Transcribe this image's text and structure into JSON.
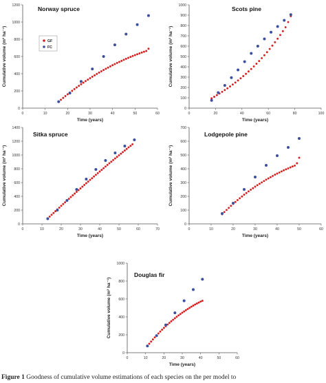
{
  "colors": {
    "GF": "#d42020",
    "FC": "#3a4fa0"
  },
  "legend": {
    "gf_label": "GF",
    "fc_label": "FC"
  },
  "caption": {
    "label": "Figure 1",
    "text": "   Goodness of cumulative volume estimations of each species on the per model to"
  },
  "chart_data": [
    {
      "type": "scatter",
      "title": "Norway spruce",
      "xlabel": "Time (years)",
      "ylabel": "Cumulative volume (m³ ha⁻¹)",
      "xlim": [
        0,
        60
      ],
      "ylim": [
        0,
        1200
      ],
      "xticks": [
        0,
        10,
        20,
        30,
        40,
        50,
        60
      ],
      "yticks": [
        0,
        200,
        400,
        600,
        800,
        1000,
        1200
      ],
      "legend_position": "top-left",
      "series": [
        {
          "name": "GF",
          "x": [
            16,
            17,
            18,
            19,
            20,
            21,
            22,
            23,
            24,
            25,
            26,
            27,
            28,
            29,
            30,
            31,
            32,
            33,
            34,
            35,
            36,
            37,
            38,
            39,
            40,
            41,
            42,
            43,
            44,
            45,
            46,
            47,
            48,
            49,
            50,
            51,
            52,
            53,
            54,
            55,
            56
          ],
          "y": [
            75,
            97,
            119,
            140,
            161,
            181,
            201,
            221,
            240,
            259,
            278,
            296,
            314,
            331,
            348,
            365,
            381,
            397,
            413,
            428,
            443,
            457,
            471,
            485,
            499,
            512,
            525,
            537,
            549,
            561,
            573,
            584,
            595,
            606,
            616,
            626,
            636,
            646,
            655,
            664,
            690
          ]
        },
        {
          "name": "FC",
          "x": [
            16,
            21,
            26,
            31,
            36,
            41,
            46,
            51,
            56
          ],
          "y": [
            75,
            175,
            310,
            455,
            600,
            735,
            860,
            970,
            1075
          ]
        }
      ]
    },
    {
      "type": "scatter",
      "title": "Scots pine",
      "xlabel": "Time (years)",
      "ylabel": "Cumulative volume (m³ ha⁻¹)",
      "xlim": [
        0,
        100
      ],
      "ylim": [
        0,
        1000
      ],
      "xticks": [
        0,
        20,
        40,
        60,
        80,
        100
      ],
      "yticks": [
        0,
        100,
        200,
        300,
        400,
        500,
        600,
        700,
        800,
        900,
        1000
      ],
      "series": [
        {
          "name": "GF",
          "x": [
            17,
            19,
            21,
            23,
            25,
            27,
            29,
            31,
            33,
            35,
            37,
            39,
            41,
            43,
            45,
            47,
            49,
            51,
            53,
            55,
            57,
            59,
            61,
            63,
            65,
            67,
            69,
            71,
            73,
            75,
            77
          ],
          "y": [
            95,
            110,
            126,
            142,
            158,
            175,
            192,
            210,
            229,
            248,
            268,
            289,
            310,
            332,
            355,
            379,
            404,
            430,
            456,
            484,
            512,
            542,
            573,
            605,
            638,
            672,
            708,
            745,
            783,
            833,
            890
          ]
        },
        {
          "name": "FC",
          "x": [
            17,
            22,
            27,
            32,
            37,
            42,
            47,
            52,
            57,
            62,
            67,
            72,
            77
          ],
          "y": [
            75,
            150,
            220,
            295,
            370,
            450,
            530,
            600,
            670,
            735,
            790,
            850,
            905
          ]
        }
      ]
    },
    {
      "type": "scatter",
      "title": "Sitka spruce",
      "xlabel": "Time (years)",
      "ylabel": "Cumulative volume (m³ ha⁻¹)",
      "xlim": [
        0,
        70
      ],
      "ylim": [
        0,
        1400
      ],
      "xticks": [
        0,
        10,
        20,
        30,
        40,
        50,
        60,
        70
      ],
      "yticks": [
        0,
        200,
        400,
        600,
        800,
        1000,
        1200,
        1400
      ],
      "series": [
        {
          "name": "GF",
          "x": [
            13,
            14,
            15,
            16,
            17,
            18,
            19,
            20,
            21,
            22,
            23,
            24,
            25,
            26,
            27,
            28,
            29,
            30,
            31,
            32,
            33,
            34,
            35,
            36,
            37,
            38,
            39,
            40,
            41,
            42,
            43,
            44,
            45,
            46,
            47,
            48,
            49,
            50,
            51,
            52,
            53,
            54,
            55,
            56,
            57,
            58
          ],
          "y": [
            80,
            106,
            132,
            158,
            184,
            210,
            236,
            262,
            288,
            313,
            339,
            364,
            390,
            415,
            440,
            465,
            490,
            515,
            540,
            565,
            590,
            614,
            639,
            663,
            688,
            712,
            736,
            760,
            784,
            808,
            832,
            856,
            880,
            903,
            927,
            950,
            973,
            996,
            1019,
            1042,
            1065,
            1088,
            1111,
            1133,
            1156,
            1220
          ]
        },
        {
          "name": "FC",
          "x": [
            13,
            18,
            23,
            28,
            33,
            38,
            43,
            48,
            53,
            58
          ],
          "y": [
            75,
            200,
            340,
            500,
            650,
            790,
            920,
            1030,
            1130,
            1220
          ]
        }
      ]
    },
    {
      "type": "scatter",
      "title": "Lodgepole pine",
      "xlabel": "Time (years)",
      "ylabel": "Cumulative volume (m³ ha⁻¹)",
      "xlim": [
        0,
        60
      ],
      "ylim": [
        0,
        700
      ],
      "xticks": [
        0,
        10,
        20,
        30,
        40,
        50,
        60
      ],
      "yticks": [
        0,
        100,
        200,
        300,
        400,
        500,
        600,
        700
      ],
      "series": [
        {
          "name": "GF",
          "x": [
            15,
            16,
            17,
            18,
            19,
            20,
            21,
            22,
            23,
            24,
            25,
            26,
            27,
            28,
            29,
            30,
            31,
            32,
            33,
            34,
            35,
            36,
            37,
            38,
            39,
            40,
            41,
            42,
            43,
            44,
            45,
            46,
            47,
            48,
            49,
            50
          ],
          "y": [
            70,
            86,
            101,
            116,
            131,
            145,
            159,
            173,
            186,
            199,
            212,
            224,
            236,
            248,
            259,
            270,
            281,
            291,
            301,
            311,
            321,
            330,
            339,
            348,
            357,
            365,
            373,
            381,
            389,
            396,
            403,
            410,
            417,
            423,
            440,
            480
          ]
        },
        {
          "name": "FC",
          "x": [
            15,
            20,
            25,
            30,
            35,
            40,
            45,
            50
          ],
          "y": [
            75,
            150,
            250,
            340,
            425,
            495,
            555,
            620
          ]
        }
      ]
    },
    {
      "type": "scatter",
      "title": "Douglas fir",
      "xlabel": "Time (years)",
      "ylabel": "Cumulative volume (m³ ha⁻¹)",
      "xlim": [
        0,
        60
      ],
      "ylim": [
        0,
        1000
      ],
      "xticks": [
        0,
        10,
        20,
        30,
        40,
        50,
        60
      ],
      "yticks": [
        0,
        200,
        400,
        600,
        800,
        1000
      ],
      "series": [
        {
          "name": "GF",
          "x": [
            11,
            12,
            13,
            14,
            15,
            16,
            17,
            18,
            19,
            20,
            21,
            22,
            23,
            24,
            25,
            26,
            27,
            28,
            29,
            30,
            31,
            32,
            33,
            34,
            35,
            36,
            37,
            38,
            39,
            40,
            41
          ],
          "y": [
            75,
            100,
            124,
            148,
            171,
            193,
            215,
            236,
            257,
            277,
            296,
            315,
            333,
            351,
            368,
            385,
            401,
            417,
            432,
            447,
            461,
            475,
            488,
            501,
            514,
            526,
            538,
            549,
            560,
            571,
            580
          ]
        },
        {
          "name": "FC",
          "x": [
            11,
            16,
            21,
            26,
            31,
            36,
            41
          ],
          "y": [
            75,
            190,
            310,
            445,
            580,
            705,
            820
          ]
        }
      ]
    }
  ]
}
